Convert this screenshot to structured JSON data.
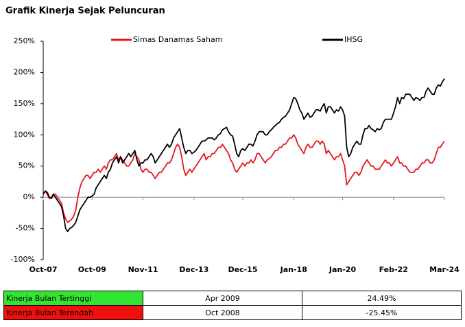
{
  "chart_data": {
    "type": "line",
    "title": "Grafik Kinerja Sejak Peluncuran",
    "x": [
      "Oct-07",
      "Nov-07",
      "Dec-07",
      "Jan-08",
      "Feb-08",
      "Mar-08",
      "Apr-08",
      "May-08",
      "Jun-08",
      "Jul-08",
      "Aug-08",
      "Sep-08",
      "Oct-08",
      "Nov-08",
      "Dec-08",
      "Jan-09",
      "Feb-09",
      "Mar-09",
      "Apr-09",
      "May-09",
      "Jun-09",
      "Jul-09",
      "Aug-09",
      "Sep-09",
      "Oct-09",
      "Nov-09",
      "Dec-09",
      "Jan-10",
      "Feb-10",
      "Mar-10",
      "Apr-10",
      "May-10",
      "Jun-10",
      "Jul-10",
      "Aug-10",
      "Sep-10",
      "Oct-10",
      "Nov-10",
      "Dec-10",
      "Jan-11",
      "Feb-11",
      "Mar-11",
      "Apr-11",
      "May-11",
      "Jun-11",
      "Jul-11",
      "Aug-11",
      "Sep-11",
      "Oct-11",
      "Nov-11",
      "Dec-11",
      "Jan-12",
      "Feb-12",
      "Mar-12",
      "Apr-12",
      "May-12",
      "Jun-12",
      "Jul-12",
      "Aug-12",
      "Sep-12",
      "Oct-12",
      "Nov-12",
      "Dec-12",
      "Jan-13",
      "Feb-13",
      "Mar-13",
      "Apr-13",
      "May-13",
      "Jun-13",
      "Jul-13",
      "Aug-13",
      "Sep-13",
      "Oct-13",
      "Nov-13",
      "Dec-13",
      "Jan-14",
      "Feb-14",
      "Mar-14",
      "Apr-14",
      "May-14",
      "Jun-14",
      "Jul-14",
      "Aug-14",
      "Sep-14",
      "Oct-14",
      "Nov-14",
      "Dec-14",
      "Jan-15",
      "Feb-15",
      "Mar-15",
      "Apr-15",
      "May-15",
      "Jun-15",
      "Jul-15",
      "Aug-15",
      "Sep-15",
      "Oct-15",
      "Nov-15",
      "Dec-15",
      "Jan-16",
      "Feb-16",
      "Mar-16",
      "Apr-16",
      "May-16",
      "Jun-16",
      "Jul-16",
      "Aug-16",
      "Sep-16",
      "Oct-16",
      "Nov-16",
      "Dec-16",
      "Jan-17",
      "Feb-17",
      "Mar-17",
      "Apr-17",
      "May-17",
      "Jun-17",
      "Jul-17",
      "Aug-17",
      "Sep-17",
      "Oct-17",
      "Nov-17",
      "Dec-17",
      "Jan-18",
      "Feb-18",
      "Mar-18",
      "Apr-18",
      "May-18",
      "Jun-18",
      "Jul-18",
      "Aug-18",
      "Sep-18",
      "Oct-18",
      "Nov-18",
      "Dec-18",
      "Jan-19",
      "Feb-19",
      "Mar-19",
      "Apr-19",
      "May-19",
      "Jun-19",
      "Jul-19",
      "Aug-19",
      "Sep-19",
      "Oct-19",
      "Nov-19",
      "Dec-19",
      "Jan-20",
      "Feb-20",
      "Mar-20",
      "Apr-20",
      "May-20",
      "Jun-20",
      "Jul-20",
      "Aug-20",
      "Sep-20",
      "Oct-20",
      "Nov-20",
      "Dec-20",
      "Jan-21",
      "Feb-21",
      "Mar-21",
      "Apr-21",
      "May-21",
      "Jun-21",
      "Jul-21",
      "Aug-21",
      "Sep-21",
      "Oct-21",
      "Nov-21",
      "Dec-21",
      "Jan-22",
      "Feb-22",
      "Mar-22",
      "Apr-22",
      "May-22",
      "Jun-22",
      "Jul-22",
      "Aug-22",
      "Sep-22",
      "Oct-22",
      "Nov-22",
      "Dec-22",
      "Jan-23",
      "Feb-23",
      "Mar-23",
      "Apr-23",
      "May-23",
      "Jun-23",
      "Jul-23",
      "Aug-23",
      "Sep-23",
      "Oct-23",
      "Nov-23",
      "Dec-23",
      "Jan-24",
      "Feb-24",
      "Mar-24"
    ],
    "xticks": [
      "Oct-07",
      "Oct-09",
      "Nov-11",
      "Dec-13",
      "Dec-15",
      "Jan-18",
      "Jan-20",
      "Feb-22",
      "Mar-24"
    ],
    "series": [
      {
        "name": "Simas Danamas Saham",
        "color": "#e8141b",
        "values": [
          5,
          10,
          5,
          -2,
          0,
          5,
          5,
          0,
          -5,
          -10,
          -25,
          -35,
          -40,
          -38,
          -35,
          -30,
          -20,
          0,
          15,
          25,
          30,
          35,
          35,
          30,
          35,
          40,
          40,
          45,
          40,
          45,
          50,
          45,
          55,
          60,
          60,
          65,
          70,
          60,
          65,
          60,
          55,
          50,
          50,
          55,
          60,
          70,
          65,
          60,
          45,
          40,
          45,
          45,
          40,
          40,
          35,
          30,
          35,
          40,
          40,
          45,
          50,
          55,
          55,
          60,
          70,
          80,
          85,
          80,
          65,
          45,
          35,
          40,
          45,
          40,
          45,
          50,
          55,
          60,
          65,
          70,
          60,
          65,
          65,
          70,
          70,
          75,
          80,
          80,
          85,
          80,
          75,
          70,
          60,
          55,
          45,
          40,
          45,
          50,
          55,
          50,
          55,
          55,
          60,
          55,
          60,
          70,
          70,
          65,
          60,
          55,
          60,
          62,
          65,
          70,
          75,
          75,
          80,
          80,
          85,
          85,
          90,
          95,
          95,
          100,
          95,
          85,
          80,
          75,
          70,
          80,
          85,
          80,
          80,
          85,
          90,
          90,
          85,
          90,
          85,
          70,
          75,
          70,
          65,
          60,
          65,
          65,
          70,
          60,
          50,
          20,
          25,
          30,
          35,
          40,
          40,
          35,
          40,
          50,
          55,
          60,
          55,
          50,
          50,
          45,
          45,
          45,
          50,
          55,
          60,
          55,
          55,
          50,
          55,
          60,
          65,
          55,
          55,
          50,
          50,
          45,
          40,
          40,
          40,
          45,
          45,
          50,
          55,
          55,
          60,
          60,
          55,
          55,
          60,
          70,
          80,
          80,
          85,
          90
        ]
      },
      {
        "name": "IHSG",
        "color": "#000000",
        "values": [
          5,
          10,
          8,
          0,
          -2,
          5,
          0,
          -5,
          -10,
          -15,
          -30,
          -50,
          -55,
          -50,
          -48,
          -45,
          -40,
          -30,
          -20,
          -15,
          -10,
          -5,
          0,
          0,
          2,
          5,
          15,
          20,
          25,
          30,
          35,
          30,
          40,
          45,
          55,
          60,
          65,
          55,
          65,
          55,
          60,
          65,
          70,
          65,
          70,
          75,
          60,
          50,
          55,
          55,
          60,
          60,
          65,
          70,
          65,
          55,
          60,
          65,
          70,
          75,
          80,
          85,
          80,
          85,
          95,
          100,
          105,
          110,
          95,
          80,
          70,
          75,
          75,
          70,
          72,
          75,
          80,
          85,
          90,
          90,
          92,
          95,
          95,
          95,
          92,
          95,
          100,
          102,
          108,
          110,
          112,
          105,
          100,
          98,
          85,
          70,
          65,
          75,
          78,
          75,
          80,
          85,
          85,
          82,
          90,
          100,
          105,
          105,
          105,
          100,
          100,
          105,
          108,
          112,
          115,
          118,
          120,
          125,
          128,
          130,
          135,
          140,
          150,
          160,
          158,
          150,
          140,
          135,
          125,
          130,
          135,
          128,
          130,
          135,
          140,
          140,
          138,
          145,
          150,
          135,
          145,
          145,
          140,
          135,
          140,
          138,
          145,
          140,
          130,
          80,
          65,
          70,
          80,
          85,
          90,
          85,
          85,
          100,
          110,
          110,
          115,
          110,
          108,
          105,
          110,
          108,
          110,
          120,
          125,
          125,
          125,
          125,
          135,
          145,
          160,
          150,
          160,
          158,
          165,
          165,
          165,
          160,
          155,
          160,
          158,
          155,
          160,
          160,
          170,
          175,
          170,
          165,
          165,
          175,
          180,
          178,
          185,
          190
        ]
      }
    ],
    "ylim": [
      -100,
      250
    ],
    "yticks": [
      {
        "value": -100,
        "label": "-100%"
      },
      {
        "value": -50,
        "label": "-50%"
      },
      {
        "value": 0,
        "label": "0%"
      },
      {
        "value": 50,
        "label": "50%"
      },
      {
        "value": 100,
        "label": "100%"
      },
      {
        "value": 150,
        "label": "150%"
      },
      {
        "value": 200,
        "label": "200%"
      },
      {
        "value": 250,
        "label": "250%"
      }
    ],
    "grid": false,
    "legend": "top"
  },
  "table": {
    "rows": [
      [
        "Kinerja Bulan Tertinggi",
        "Apr 2009",
        "24.49%"
      ],
      [
        "Kinerja Bulan Terendah",
        "Oct 2008",
        "-25.45%"
      ]
    ],
    "row_colors": [
      "#33e533",
      "#f01010"
    ]
  }
}
